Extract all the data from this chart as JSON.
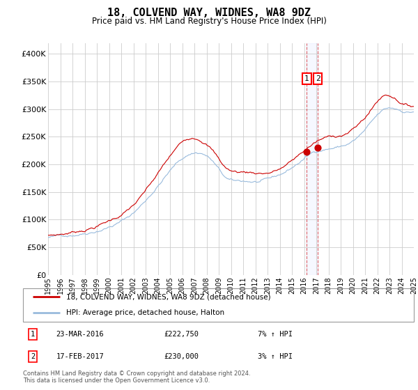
{
  "title": "18, COLVEND WAY, WIDNES, WA8 9DZ",
  "subtitle": "Price paid vs. HM Land Registry's House Price Index (HPI)",
  "ylim": [
    0,
    420000
  ],
  "yticks": [
    0,
    50000,
    100000,
    150000,
    200000,
    250000,
    300000,
    350000,
    400000
  ],
  "ytick_labels": [
    "£0",
    "£50K",
    "£100K",
    "£150K",
    "£200K",
    "£250K",
    "£300K",
    "£350K",
    "£400K"
  ],
  "plot_bg": "#ffffff",
  "grid_color": "#cccccc",
  "red_color": "#cc0000",
  "blue_color": "#99bbdd",
  "annotation1_date": "23-MAR-2016",
  "annotation1_price": "£222,750",
  "annotation1_hpi": "7% ↑ HPI",
  "annotation2_date": "17-FEB-2017",
  "annotation2_price": "£230,000",
  "annotation2_hpi": "3% ↑ HPI",
  "legend_label1": "18, COLVEND WAY, WIDNES, WA8 9DZ (detached house)",
  "legend_label2": "HPI: Average price, detached house, Halton",
  "footnote": "Contains HM Land Registry data © Crown copyright and database right 2024.\nThis data is licensed under the Open Government Licence v3.0.",
  "sale1_year": 2016.22,
  "sale1_price": 222750,
  "sale2_year": 2017.12,
  "sale2_price": 230000,
  "xlim_start": 1995,
  "xlim_end": 2025
}
